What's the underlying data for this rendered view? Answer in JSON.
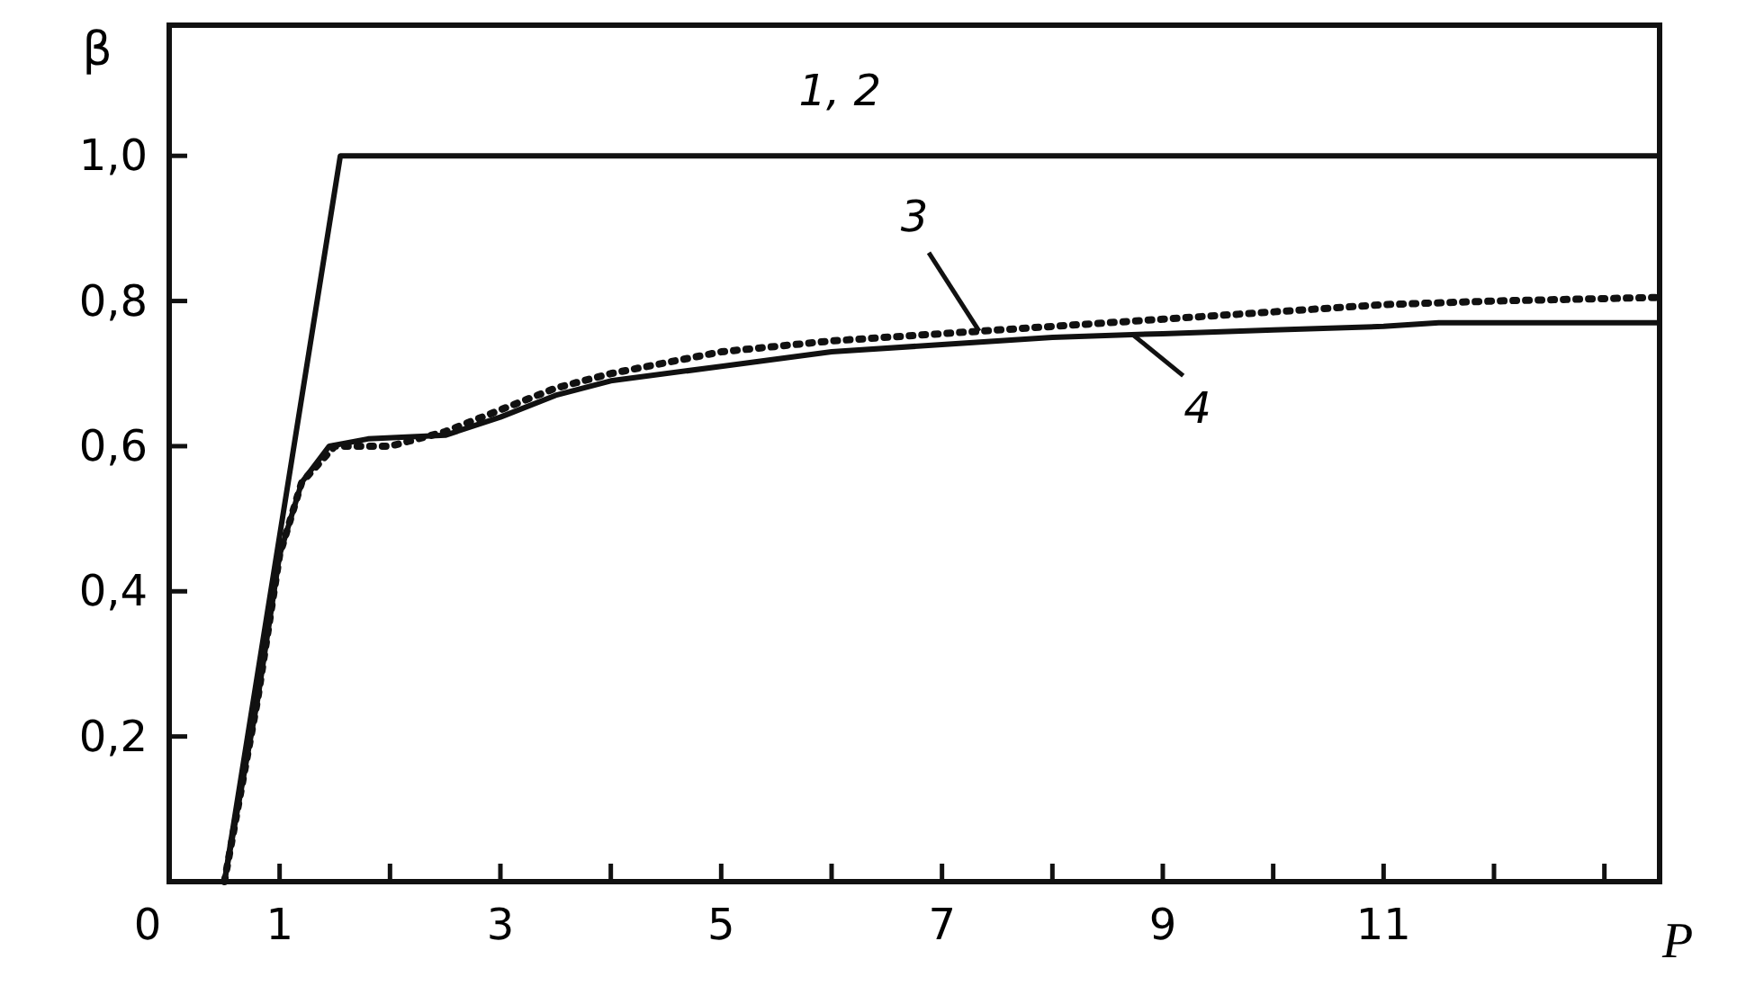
{
  "chart_data": {
    "type": "line",
    "xlabel": "P",
    "ylabel": "β",
    "xlim": [
      0,
      13.5
    ],
    "ylim": [
      0,
      1.18
    ],
    "xticks": [
      {
        "value": 0,
        "label": "0"
      },
      {
        "value": 1,
        "label": "1"
      },
      {
        "value": 2,
        "label": null
      },
      {
        "value": 3,
        "label": "3"
      },
      {
        "value": 4,
        "label": null
      },
      {
        "value": 5,
        "label": "5"
      },
      {
        "value": 6,
        "label": null
      },
      {
        "value": 7,
        "label": "7"
      },
      {
        "value": 8,
        "label": null
      },
      {
        "value": 9,
        "label": "9"
      },
      {
        "value": 10,
        "label": null
      },
      {
        "value": 11,
        "label": "11"
      },
      {
        "value": 12,
        "label": null
      },
      {
        "value": 13,
        "label": null
      }
    ],
    "yticks": [
      {
        "value": 0.2,
        "label": "0,2"
      },
      {
        "value": 0.4,
        "label": "0,4"
      },
      {
        "value": 0.6,
        "label": "0,6"
      },
      {
        "value": 0.8,
        "label": "0,8"
      },
      {
        "value": 1.0,
        "label": "1,0"
      }
    ],
    "grid": false,
    "marker": "none",
    "series": [
      {
        "name": "1, 2",
        "color": "#111111",
        "line_style": "solid",
        "x": [
          0.5,
          1.55,
          13.5
        ],
        "values": [
          0,
          1.0,
          1.0
        ]
      },
      {
        "name": "3",
        "color": "#111111",
        "line_style": "dotted",
        "x": [
          0.5,
          0.8,
          1.0,
          1.2,
          1.5,
          2,
          2.5,
          3,
          3.5,
          4,
          5,
          6,
          7,
          8,
          9,
          10,
          11,
          12,
          13.5
        ],
        "values": [
          0,
          0.25,
          0.45,
          0.55,
          0.6,
          0.6,
          0.62,
          0.65,
          0.68,
          0.7,
          0.73,
          0.745,
          0.755,
          0.765,
          0.775,
          0.785,
          0.795,
          0.8,
          0.805
        ]
      },
      {
        "name": "4",
        "color": "#111111",
        "line_style": "solid",
        "x": [
          0.5,
          0.8,
          1.0,
          1.2,
          1.45,
          1.8,
          2.5,
          3,
          3.5,
          4,
          5,
          6,
          7,
          8,
          9,
          10,
          11,
          11.5,
          13.5
        ],
        "values": [
          0,
          0.25,
          0.45,
          0.55,
          0.6,
          0.61,
          0.615,
          0.64,
          0.67,
          0.69,
          0.71,
          0.73,
          0.74,
          0.75,
          0.755,
          0.76,
          0.765,
          0.77,
          0.77
        ]
      }
    ]
  }
}
